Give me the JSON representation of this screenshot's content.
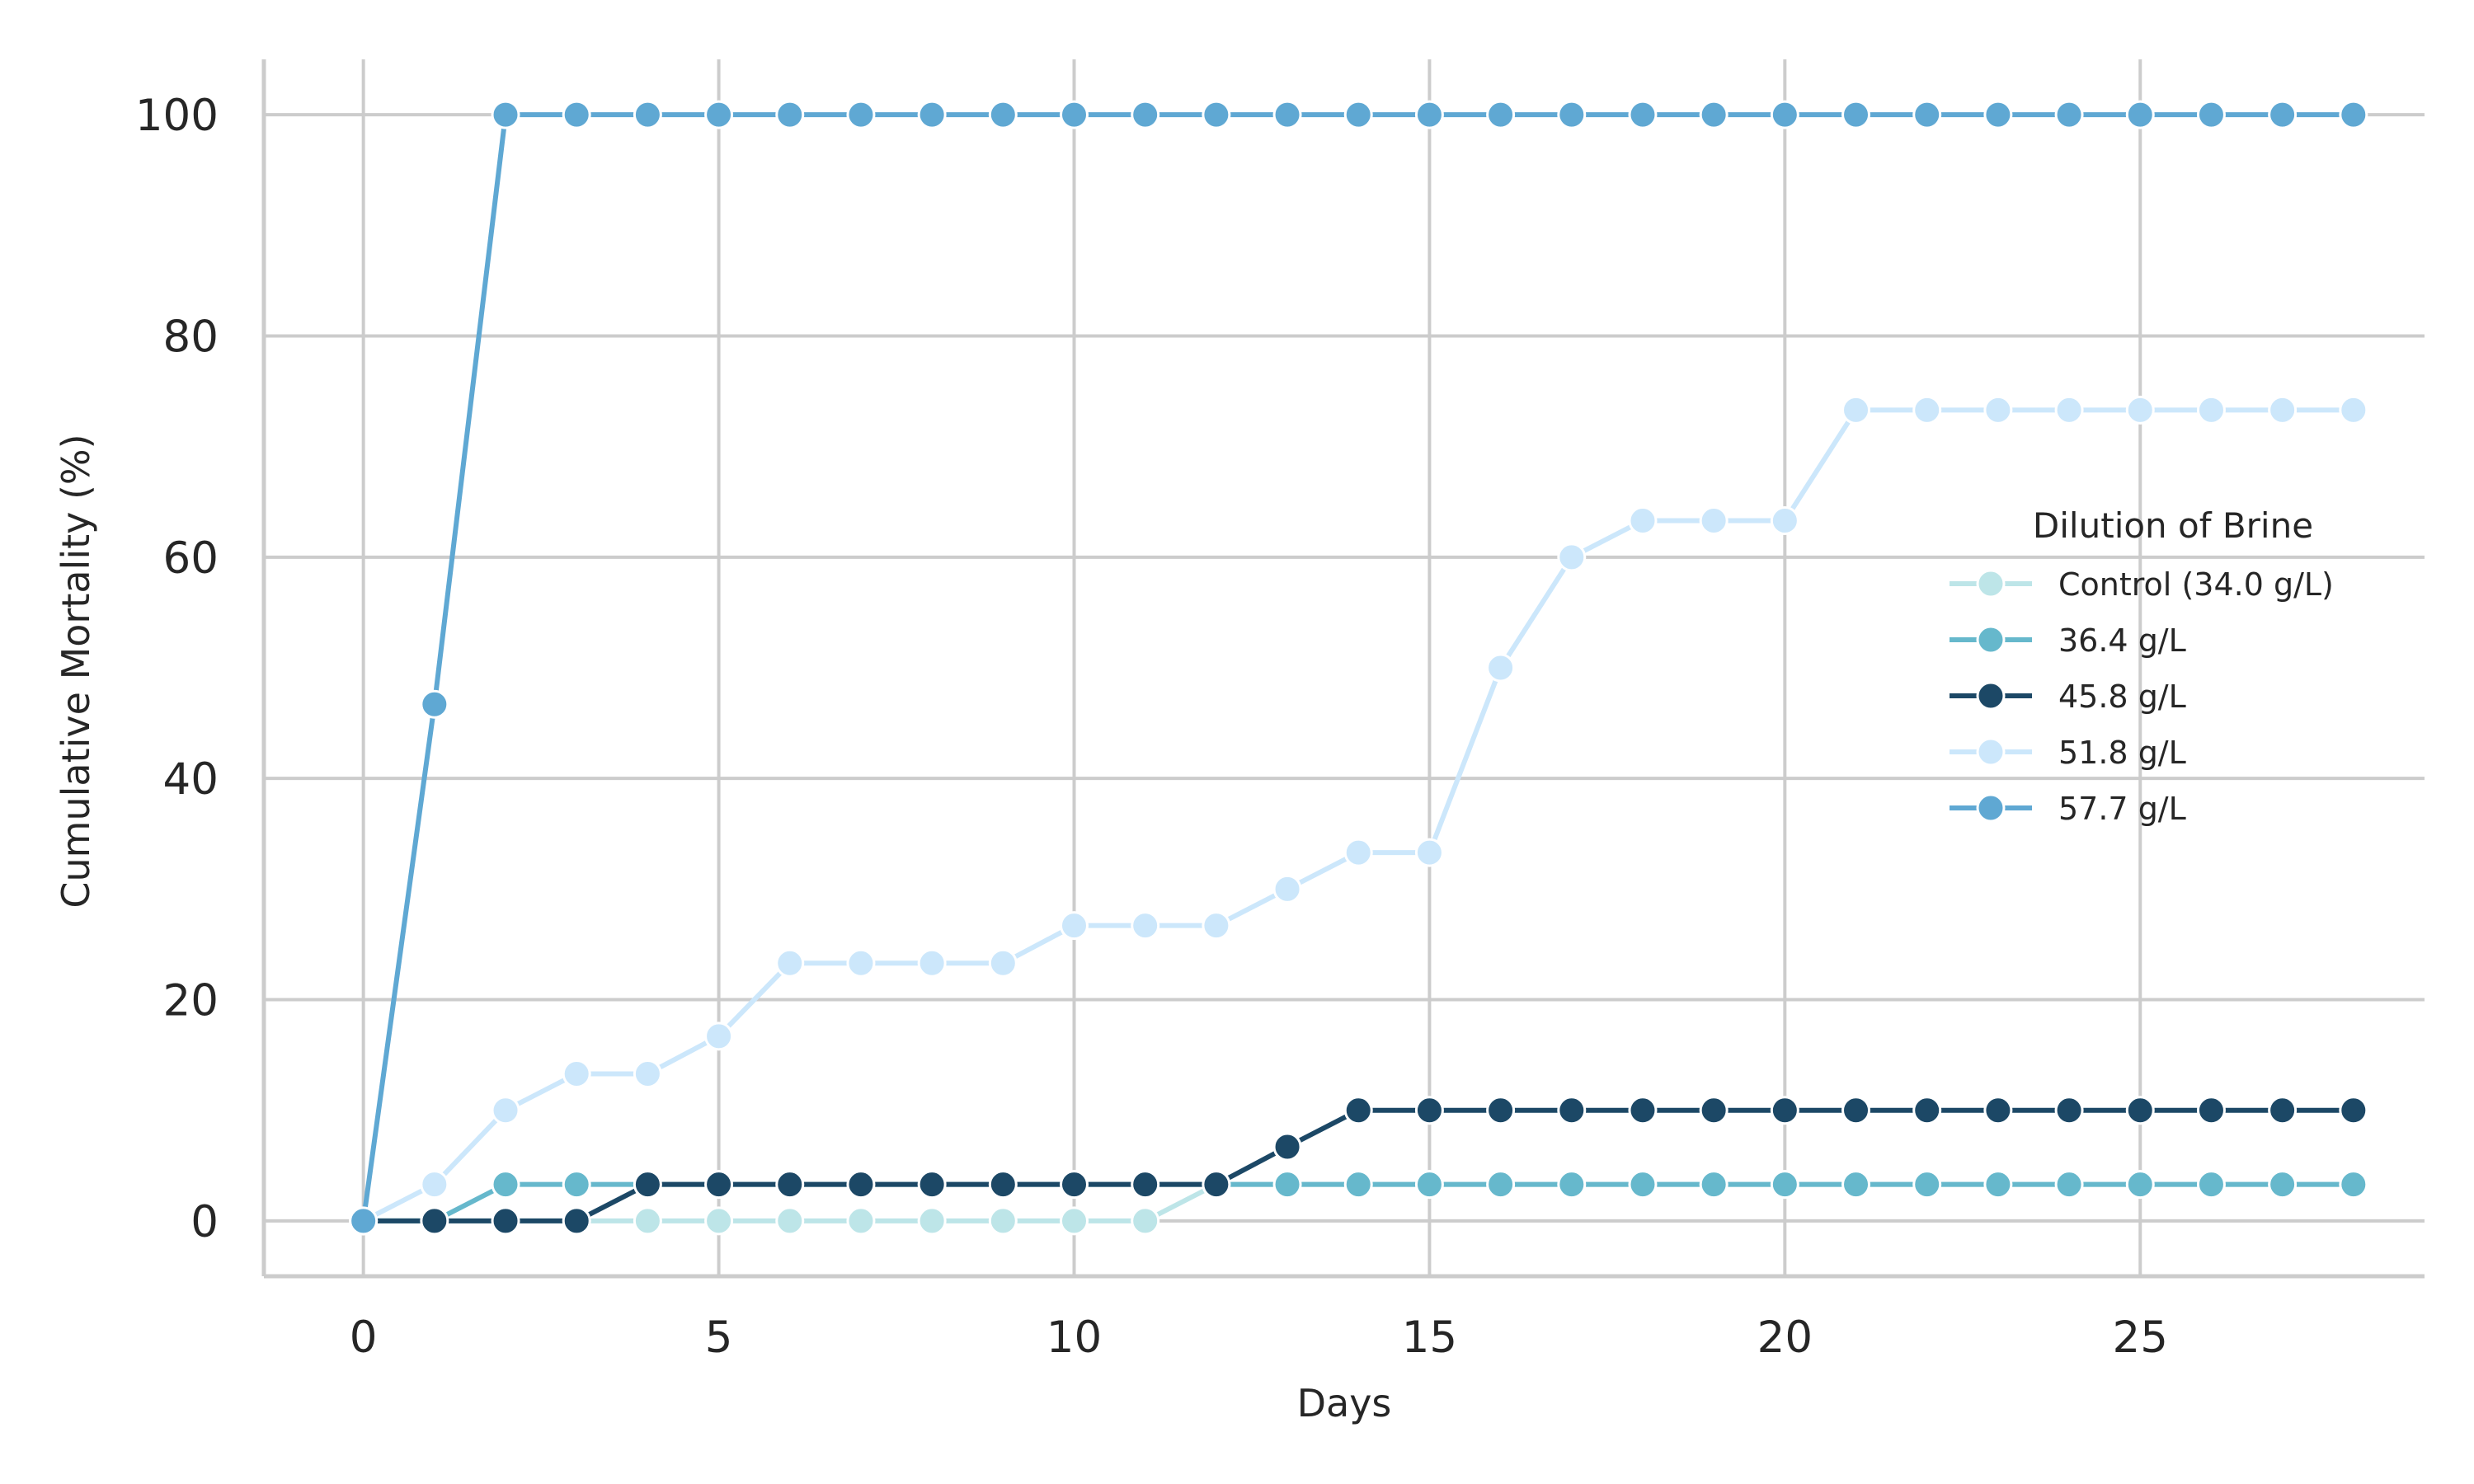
{
  "chart_data": {
    "type": "line",
    "xlabel": "Days",
    "ylabel": "Cumulative Mortality (%)",
    "xlim": [
      -1.4,
      29
    ],
    "ylim": [
      -5,
      105
    ],
    "x_ticks": [
      0,
      5,
      10,
      15,
      20,
      25
    ],
    "y_ticks": [
      0,
      20,
      40,
      60,
      80,
      100
    ],
    "x_tick_labels": [
      "0",
      "5",
      "10",
      "15",
      "20",
      "25"
    ],
    "y_tick_labels": [
      "0",
      "20",
      "40",
      "60",
      "80",
      "100"
    ],
    "grid": true,
    "legend": {
      "title": "Dilution of Brine",
      "placement": "center-right"
    },
    "x": [
      0,
      1,
      2,
      3,
      4,
      5,
      6,
      7,
      8,
      9,
      10,
      11,
      12,
      13,
      14,
      15,
      16,
      17,
      18,
      19,
      20,
      21,
      22,
      23,
      24,
      25,
      26,
      27,
      28
    ],
    "series": [
      {
        "name": "Control (34.0 g/L)",
        "color": "#bde5e8",
        "values": [
          0,
          0,
          0,
          0,
          0,
          0,
          0,
          0,
          0,
          0,
          0,
          0,
          3.3,
          3.3,
          3.3,
          3.3,
          3.3,
          3.3,
          3.3,
          3.3,
          3.3,
          3.3,
          3.3,
          3.3,
          3.3,
          3.3,
          3.3,
          3.3,
          3.3
        ]
      },
      {
        "name": "36.4 g/L",
        "color": "#66b8cc",
        "values": [
          0,
          0,
          3.3,
          3.3,
          3.3,
          3.3,
          3.3,
          3.3,
          3.3,
          3.3,
          3.3,
          3.3,
          3.3,
          3.3,
          3.3,
          3.3,
          3.3,
          3.3,
          3.3,
          3.3,
          3.3,
          3.3,
          3.3,
          3.3,
          3.3,
          3.3,
          3.3,
          3.3,
          3.3
        ]
      },
      {
        "name": "45.8 g/L",
        "color": "#1c4866",
        "values": [
          0,
          0,
          0,
          0,
          3.3,
          3.3,
          3.3,
          3.3,
          3.3,
          3.3,
          3.3,
          3.3,
          3.3,
          6.7,
          10,
          10,
          10,
          10,
          10,
          10,
          10,
          10,
          10,
          10,
          10,
          10,
          10,
          10,
          10
        ]
      },
      {
        "name": "51.8 g/L",
        "color": "#cce7fb",
        "values": [
          0,
          3.3,
          10,
          13.3,
          13.3,
          16.7,
          23.3,
          23.3,
          23.3,
          23.3,
          26.7,
          26.7,
          26.7,
          30,
          33.3,
          33.3,
          50,
          60,
          63.3,
          63.3,
          63.3,
          73.3,
          73.3,
          73.3,
          73.3,
          73.3,
          73.3,
          73.3,
          73.3
        ]
      },
      {
        "name": "57.7 g/L",
        "color": "#5fa8d3",
        "values": [
          0,
          46.7,
          100,
          100,
          100,
          100,
          100,
          100,
          100,
          100,
          100,
          100,
          100,
          100,
          100,
          100,
          100,
          100,
          100,
          100,
          100,
          100,
          100,
          100,
          100,
          100,
          100,
          100,
          100
        ]
      }
    ]
  }
}
